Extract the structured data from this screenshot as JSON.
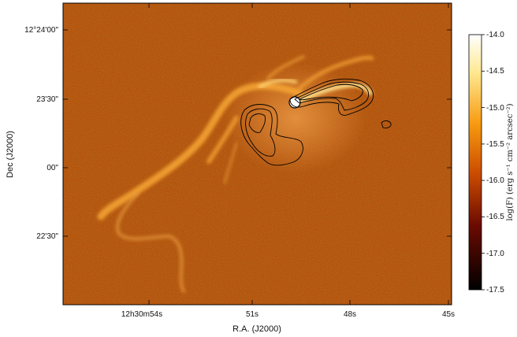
{
  "chart_data": {
    "type": "heatmap",
    "colormap": "afmhot",
    "xlabel": "R.A. (J2000)",
    "ylabel": "Dec (J2000)",
    "x_ticks": [
      "12h30m54s",
      "51s",
      "48s",
      "45s"
    ],
    "y_ticks": [
      "12°24'00\"",
      "23'30\"",
      "00\"",
      "22'30\""
    ],
    "colorbar": {
      "label": "log(F) (erg s⁻¹ cm⁻² arcsec⁻²)",
      "range": [
        -17.5,
        -14.0
      ],
      "ticks": [
        "-14.0",
        "-14.5",
        "-15.0",
        "-15.5",
        "-16.0",
        "-16.5",
        "-17.0",
        "-17.5"
      ]
    },
    "overlay": "black contours",
    "colors": {
      "background": "#b54f0a",
      "filament": "#f7a736",
      "bright": "#ffe08a",
      "contour": "#000000"
    }
  }
}
